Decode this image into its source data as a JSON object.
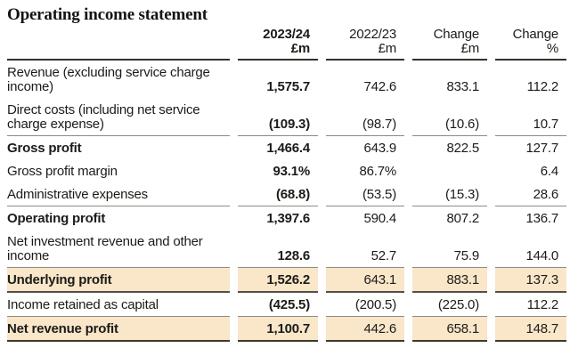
{
  "title": "Operating income statement",
  "colors": {
    "highlight": "#fae6c9",
    "rule_gray": "#8b8b82",
    "rule_dark": "#3a3a30",
    "text": "#1b1b18"
  },
  "table": {
    "columns": [
      {
        "line1": "2023/24",
        "line2": "£m",
        "bold": true
      },
      {
        "line1": "2022/23",
        "line2": "£m",
        "bold": false
      },
      {
        "line1": "Change",
        "line2": "£m",
        "bold": false
      },
      {
        "line1": "Change",
        "line2": "%",
        "bold": false
      }
    ],
    "rows": [
      {
        "label": "Revenue (excluding service charge income)",
        "values": [
          "1,575.7",
          "742.6",
          "833.1",
          "112.2"
        ],
        "bold": false,
        "hl": false,
        "rule": "none"
      },
      {
        "label": "Direct costs (including net service charge expense)",
        "values": [
          "(109.3)",
          "(98.7)",
          "(10.6)",
          "10.7"
        ],
        "bold": false,
        "hl": false,
        "rule": "gray"
      },
      {
        "label": "Gross profit",
        "values": [
          "1,466.4",
          "643.9",
          "822.5",
          "127.7"
        ],
        "bold": true,
        "hl": false,
        "rule": "none"
      },
      {
        "label": "Gross profit margin",
        "values": [
          "93.1%",
          "86.7%",
          "",
          "6.4"
        ],
        "bold": false,
        "hl": false,
        "rule": "none"
      },
      {
        "label": "Administrative expenses",
        "values": [
          "(68.8)",
          "(53.5)",
          "(15.3)",
          "28.6"
        ],
        "bold": false,
        "hl": false,
        "rule": "gray"
      },
      {
        "label": "Operating profit",
        "values": [
          "1,397.6",
          "590.4",
          "807.2",
          "136.7"
        ],
        "bold": true,
        "hl": false,
        "rule": "none"
      },
      {
        "label": "Net investment revenue and other income",
        "values": [
          "128.6",
          "52.7",
          "75.9",
          "144.0"
        ],
        "bold": false,
        "hl": false,
        "rule": "gray"
      },
      {
        "label": "Underlying profit",
        "values": [
          "1,526.2",
          "643.1",
          "883.1",
          "137.3"
        ],
        "bold": true,
        "hl": true,
        "rule": "dark"
      },
      {
        "label": "Income retained as capital",
        "values": [
          "(425.5)",
          "(200.5)",
          "(225.0)",
          "112.2"
        ],
        "bold": false,
        "hl": false,
        "rule": "gray"
      },
      {
        "label": "Net revenue profit",
        "values": [
          "1,100.7",
          "442.6",
          "658.1",
          "148.7"
        ],
        "bold": true,
        "hl": true,
        "rule": "darker"
      }
    ]
  }
}
